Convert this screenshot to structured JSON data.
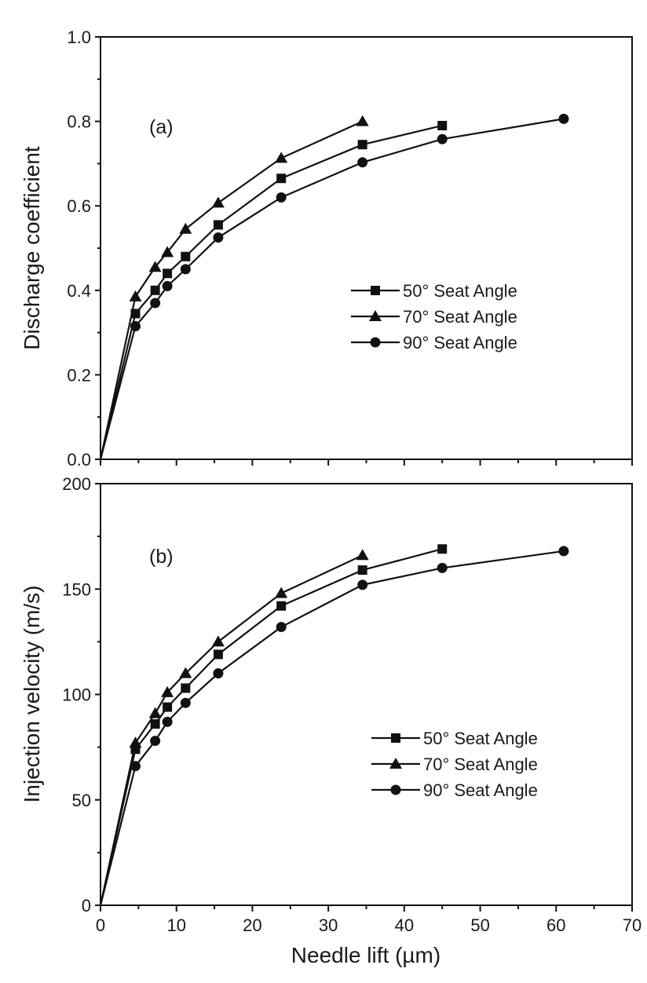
{
  "chart_data": [
    {
      "type": "line",
      "panel_label": "(a)",
      "title": "",
      "xlabel": "",
      "ylabel": "Discharge coefficient",
      "xlim": [
        0,
        70
      ],
      "ylim": [
        0.0,
        1.0
      ],
      "x_ticks": [
        0,
        10,
        20,
        30,
        40,
        50,
        60,
        70
      ],
      "y_ticks": [
        "0.0",
        "0.2",
        "0.4",
        "0.6",
        "0.8",
        "1.0"
      ],
      "y_tick_values": [
        0.0,
        0.2,
        0.4,
        0.6,
        0.8,
        1.0
      ],
      "grid": false,
      "legend_position": "center-right",
      "series": [
        {
          "name": "50° Seat Angle",
          "marker": "square",
          "x": [
            0,
            4.6,
            7.2,
            8.8,
            11.2,
            15.5,
            23.8,
            34.5,
            45.0
          ],
          "values": [
            0.0,
            0.345,
            0.4,
            0.44,
            0.48,
            0.555,
            0.665,
            0.745,
            0.79
          ]
        },
        {
          "name": "70° Seat Angle",
          "marker": "triangle",
          "x": [
            0,
            4.6,
            7.2,
            8.8,
            11.2,
            15.5,
            23.8,
            34.5
          ],
          "values": [
            0.0,
            0.385,
            0.455,
            0.49,
            0.545,
            0.607,
            0.713,
            0.8
          ]
        },
        {
          "name": "90° Seat Angle",
          "marker": "circle",
          "x": [
            0,
            4.6,
            7.2,
            8.8,
            11.2,
            15.5,
            23.8,
            34.5,
            45.0,
            61.0
          ],
          "values": [
            0.0,
            0.315,
            0.37,
            0.41,
            0.45,
            0.525,
            0.62,
            0.703,
            0.758,
            0.806
          ]
        }
      ]
    },
    {
      "type": "line",
      "panel_label": "(b)",
      "title": "",
      "xlabel": "Needle lift (µm)",
      "ylabel": "Injection velocity (m/s)",
      "xlim": [
        0,
        70
      ],
      "ylim": [
        0,
        200
      ],
      "x_ticks": [
        0,
        10,
        20,
        30,
        40,
        50,
        60,
        70
      ],
      "y_ticks": [
        "0",
        "50",
        "100",
        "150",
        "200"
      ],
      "y_tick_values": [
        0,
        50,
        100,
        150,
        200
      ],
      "grid": false,
      "legend_position": "center-right",
      "series": [
        {
          "name": "50° Seat Angle",
          "marker": "square",
          "x": [
            0,
            4.6,
            7.2,
            8.8,
            11.2,
            15.5,
            23.8,
            34.5,
            45.0
          ],
          "values": [
            0,
            74,
            86,
            94,
            103,
            119,
            142,
            159,
            169
          ]
        },
        {
          "name": "70° Seat Angle",
          "marker": "triangle",
          "x": [
            0,
            4.6,
            7.2,
            8.8,
            11.2,
            15.5,
            23.8,
            34.5
          ],
          "values": [
            0,
            77,
            91,
            101,
            110,
            125,
            148,
            166
          ]
        },
        {
          "name": "90° Seat Angle",
          "marker": "circle",
          "x": [
            0,
            4.6,
            7.2,
            8.8,
            11.2,
            15.5,
            23.8,
            34.5,
            45.0,
            61.0
          ],
          "values": [
            0,
            66,
            78,
            87,
            96,
            110,
            132,
            152,
            160,
            168
          ]
        }
      ]
    }
  ],
  "figure": {
    "panel_a": {
      "label": "(a)",
      "ylabel": "Discharge coefficient"
    },
    "panel_b": {
      "label": "(b)",
      "ylabel": "Injection velocity (m/s)"
    },
    "xlabel": "Needle lift (µm)",
    "legend": [
      "50° Seat Angle",
      "70° Seat Angle",
      "90° Seat Angle"
    ],
    "colors": {
      "ink": "#111111",
      "background": "#ffffff"
    }
  }
}
